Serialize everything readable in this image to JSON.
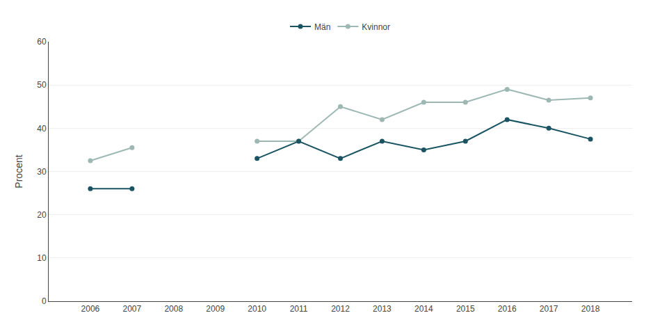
{
  "chart_data": {
    "type": "line",
    "y_label": "Procent",
    "x": [
      2006,
      2007,
      2008,
      2009,
      2010,
      2011,
      2012,
      2013,
      2014,
      2015,
      2016,
      2017,
      2018
    ],
    "series": [
      {
        "name": "Kvinnor",
        "color": "#9db8b2",
        "values": [
          32.5,
          35.5,
          null,
          null,
          37,
          37,
          45,
          42,
          46,
          46,
          49,
          46.5,
          47
        ]
      },
      {
        "name": "Män",
        "color": "#1a5463",
        "values": [
          26,
          26,
          null,
          null,
          33,
          37,
          33,
          37,
          35,
          37,
          42,
          40,
          37.5
        ]
      }
    ],
    "xlim": [
      2005,
      2019
    ],
    "xticks": [
      2006,
      2007,
      2008,
      2009,
      2010,
      2011,
      2012,
      2013,
      2014,
      2015,
      2016,
      2017,
      2018
    ],
    "ylim": [
      0,
      60
    ],
    "yticks": [
      0,
      10,
      20,
      30,
      40,
      50,
      60
    ],
    "grid": true,
    "legend": "top",
    "marker": "circle"
  }
}
